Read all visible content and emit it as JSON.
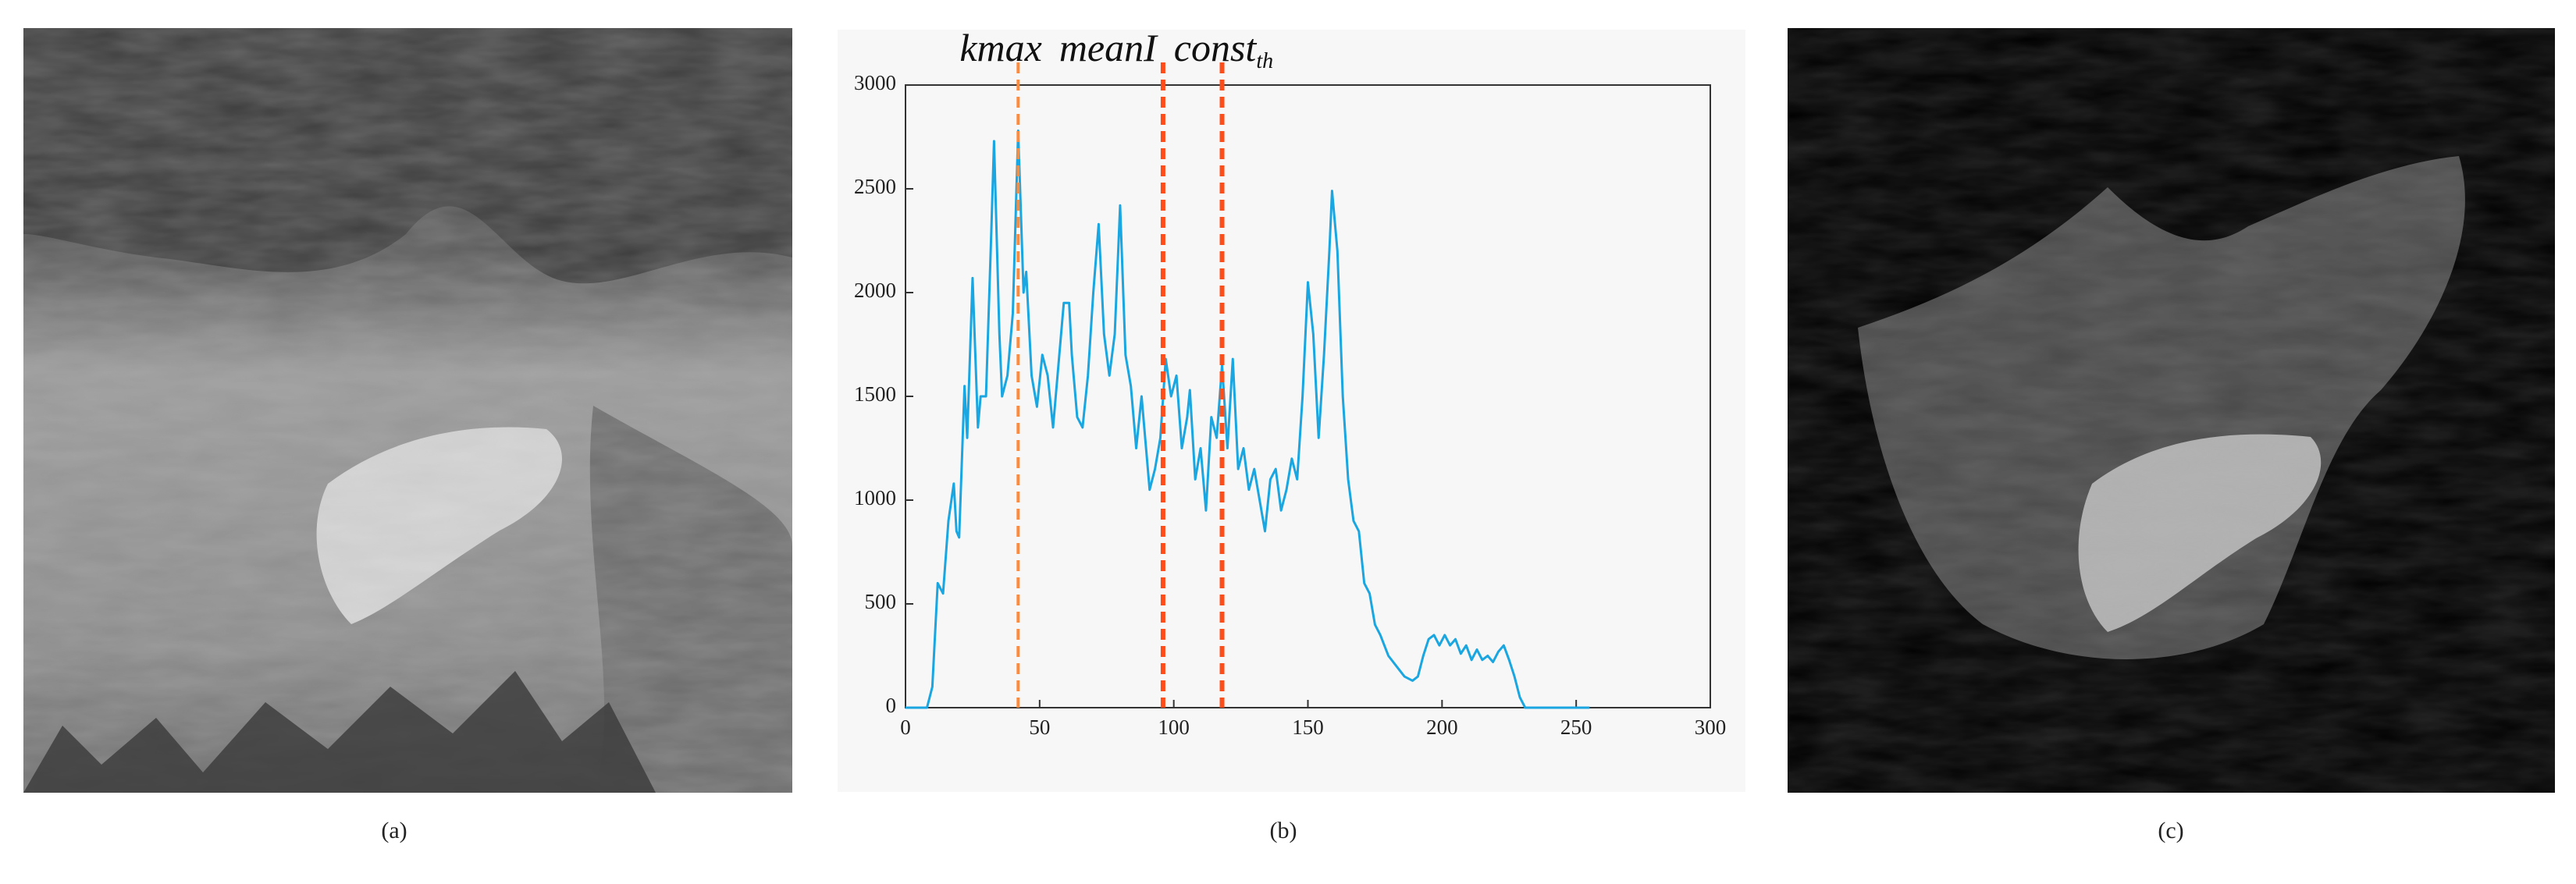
{
  "captions": [
    "(a)",
    "(b)",
    "(c)"
  ],
  "chart_data": {
    "type": "line",
    "x": [
      0,
      8,
      10,
      12,
      14,
      16,
      18,
      19,
      20,
      22,
      23,
      25,
      27,
      28,
      30,
      32,
      33,
      35,
      36,
      38,
      40,
      42,
      44,
      45,
      47,
      49,
      51,
      53,
      55,
      57,
      59,
      61,
      62,
      64,
      66,
      68,
      70,
      72,
      74,
      76,
      78,
      80,
      82,
      84,
      86,
      88,
      90,
      91,
      93,
      95,
      97,
      99,
      101,
      103,
      105,
      106,
      108,
      110,
      112,
      114,
      116,
      118,
      120,
      122,
      124,
      126,
      128,
      130,
      132,
      134,
      136,
      138,
      140,
      142,
      144,
      146,
      148,
      150,
      152,
      154,
      156,
      158,
      159,
      161,
      163,
      165,
      167,
      169,
      171,
      173,
      175,
      177,
      180,
      183,
      186,
      189,
      191,
      193,
      195,
      197,
      199,
      201,
      203,
      205,
      207,
      209,
      211,
      213,
      215,
      217,
      219,
      221,
      223,
      225,
      227,
      229,
      231,
      235,
      255
    ],
    "values": [
      0,
      0,
      100,
      600,
      550,
      900,
      1080,
      850,
      820,
      1550,
      1300,
      2070,
      1350,
      1500,
      1500,
      2300,
      2730,
      1800,
      1500,
      1600,
      1900,
      2780,
      2000,
      2100,
      1600,
      1450,
      1700,
      1600,
      1350,
      1650,
      1950,
      1950,
      1700,
      1400,
      1350,
      1600,
      2000,
      2330,
      1800,
      1600,
      1800,
      2420,
      1700,
      1550,
      1250,
      1500,
      1200,
      1050,
      1150,
      1300,
      1680,
      1500,
      1600,
      1250,
      1400,
      1530,
      1100,
      1250,
      950,
      1400,
      1300,
      1650,
      1250,
      1680,
      1150,
      1250,
      1050,
      1150,
      1000,
      850,
      1100,
      1150,
      950,
      1050,
      1200,
      1100,
      1500,
      2050,
      1800,
      1300,
      1700,
      2200,
      2490,
      2200,
      1500,
      1100,
      900,
      850,
      600,
      550,
      400,
      350,
      250,
      200,
      150,
      130,
      150,
      250,
      330,
      350,
      300,
      350,
      300,
      330,
      260,
      300,
      230,
      280,
      230,
      250,
      220,
      270,
      300,
      230,
      150,
      50,
      0,
      0,
      0
    ],
    "color": "#1aa6e0",
    "xlim": [
      0,
      300
    ],
    "xticks": [
      0,
      50,
      100,
      150,
      200,
      250,
      300
    ],
    "ylim": [
      0,
      3000
    ],
    "yticks": [
      0,
      500,
      1000,
      1500,
      2000,
      2500,
      3000
    ],
    "annotations": [
      {
        "text": "kmax",
        "x": 42,
        "color": "#ff8a3a"
      },
      {
        "text": "meanI",
        "x": 96,
        "color": "#ff4d1a"
      },
      {
        "text": "const",
        "subscript": "th",
        "x": 118,
        "color": "#ff4d1a"
      }
    ]
  }
}
